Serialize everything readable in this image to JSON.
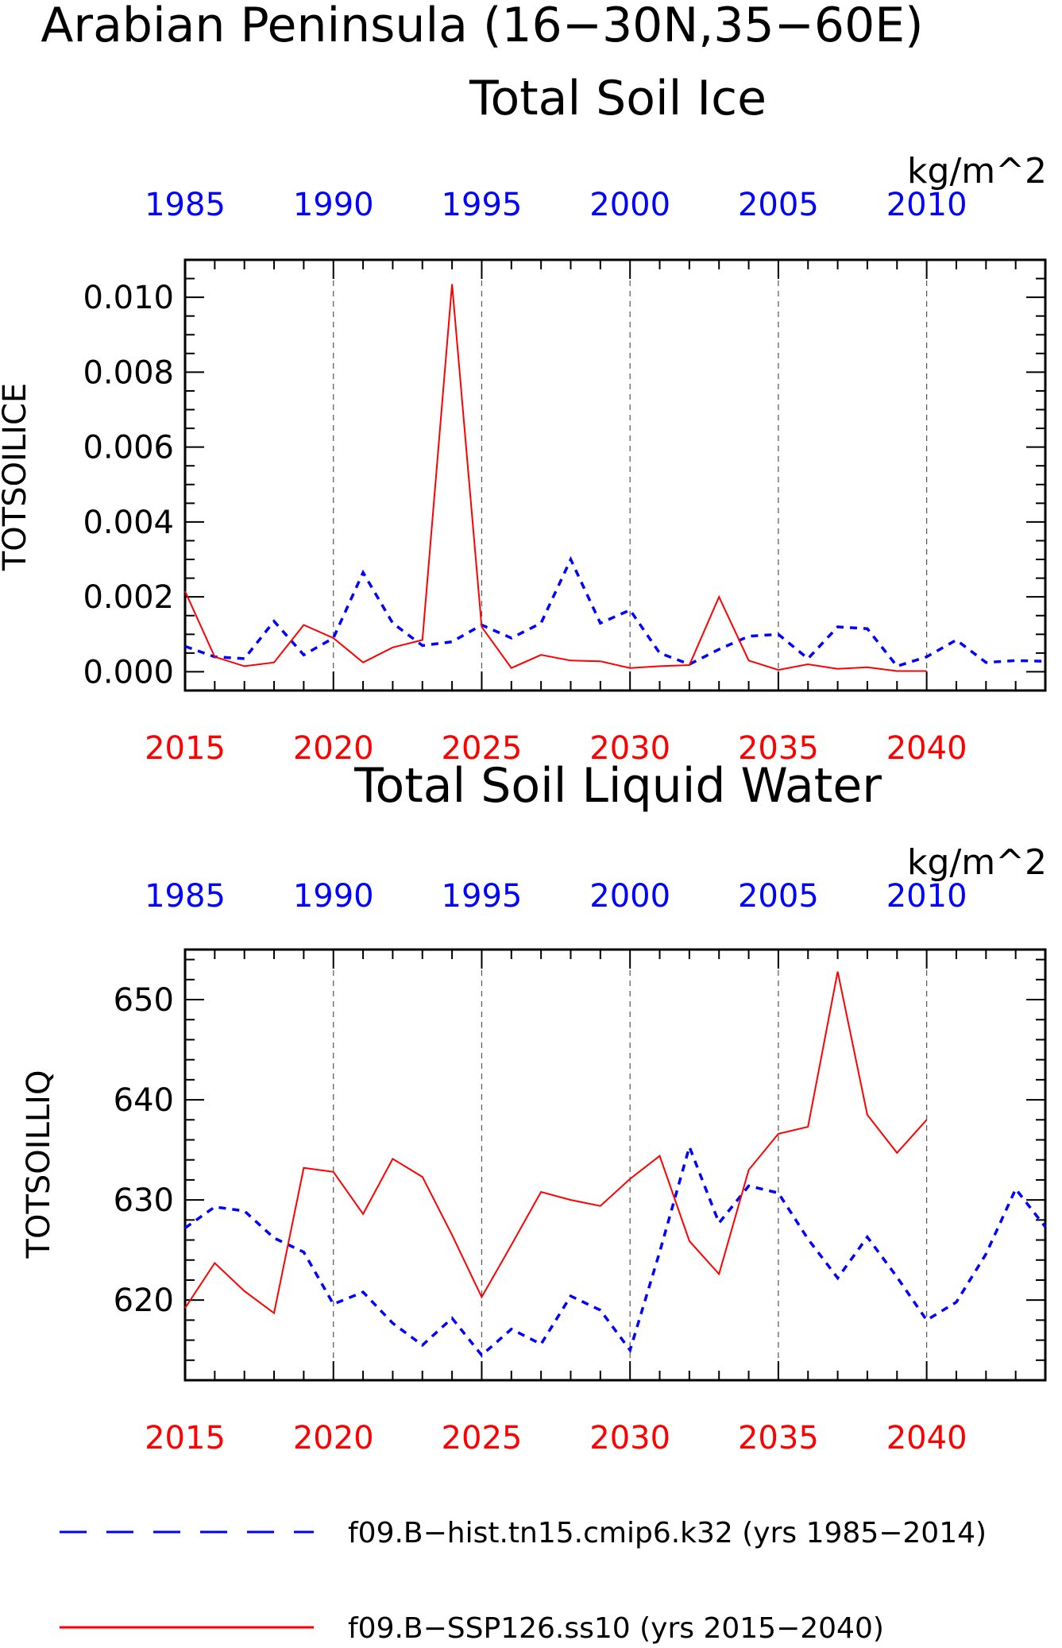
{
  "figure_title": "Arabian Peninsula (16−30N,35−60E)",
  "legend": [
    {
      "label": "f09.B−hist.tn15.cmip6.k32 (yrs 1985−2014)",
      "color": "#0000ff",
      "style": "dashed"
    },
    {
      "label": "f09.B−SSP126.ss10 (yrs 2015−2040)",
      "color": "#ff0000",
      "style": "solid"
    }
  ],
  "colors": {
    "hist": "#0000ff",
    "ssp": "#ff0000",
    "axis": "#000000",
    "grid": "#555555"
  },
  "chart_data": [
    {
      "type": "line",
      "title": "Total Soil Ice",
      "units": "kg/m^2",
      "ylabel": "TOTSOILICE",
      "ylim": [
        -0.0005,
        0.011
      ],
      "yticks": [
        {
          "v": 0.0,
          "label": "0.000"
        },
        {
          "v": 0.002,
          "label": "0.002"
        },
        {
          "v": 0.004,
          "label": "0.004"
        },
        {
          "v": 0.006,
          "label": "0.006"
        },
        {
          "v": 0.008,
          "label": "0.008"
        },
        {
          "v": 0.01,
          "label": "0.010"
        }
      ],
      "yminor": 0.0005,
      "top_xlim": [
        1985,
        2014
      ],
      "top_xticks": [
        "1985",
        "1990",
        "1995",
        "2000",
        "2005",
        "2010"
      ],
      "bottom_xlim": [
        2015,
        2044
      ],
      "bottom_xticks": [
        "2015",
        "2020",
        "2025",
        "2030",
        "2035",
        "2040"
      ],
      "grid": "vertical dashed at major ticks",
      "series": [
        {
          "name": "f09.B−hist.tn15.cmip6.k32 (yrs 1985−2014)",
          "axis": "top",
          "x": [
            1985,
            1986,
            1987,
            1988,
            1989,
            1990,
            1991,
            1992,
            1993,
            1994,
            1995,
            1996,
            1997,
            1998,
            1999,
            2000,
            2001,
            2002,
            2003,
            2004,
            2005,
            2006,
            2007,
            2008,
            2009,
            2010,
            2011,
            2012,
            2013,
            2014
          ],
          "values": [
            0.00068,
            0.0004,
            0.00035,
            0.00135,
            0.00045,
            0.0009,
            0.00265,
            0.0013,
            0.0007,
            0.0008,
            0.00125,
            0.0009,
            0.0013,
            0.003,
            0.0013,
            0.00165,
            0.0005,
            0.0002,
            0.0006,
            0.00095,
            0.001,
            0.00035,
            0.0012,
            0.00115,
            0.00015,
            0.0004,
            0.00085,
            0.00025,
            0.0003,
            0.00028
          ]
        },
        {
          "name": "f09.B−SSP126.ss10 (yrs 2015−2040)",
          "axis": "bottom",
          "x": [
            2015,
            2016,
            2017,
            2018,
            2019,
            2020,
            2021,
            2022,
            2023,
            2024,
            2025,
            2026,
            2027,
            2028,
            2029,
            2030,
            2031,
            2032,
            2033,
            2034,
            2035,
            2036,
            2037,
            2038,
            2039,
            2040
          ],
          "values": [
            0.00215,
            0.0004,
            0.00015,
            0.00025,
            0.00125,
            0.0009,
            0.00025,
            0.00065,
            0.00085,
            0.01035,
            0.0012,
            0.0001,
            0.00045,
            0.0003,
            0.00028,
            0.0001,
            0.00015,
            0.00018,
            0.002,
            0.0003,
            5e-05,
            0.0002,
            8e-05,
            0.00012,
            2e-05,
            2e-05
          ]
        }
      ]
    },
    {
      "type": "line",
      "title": "Total Soil Liquid Water",
      "units": "kg/m^2",
      "ylabel": "TOTSOILLIQ",
      "ylim": [
        612,
        655
      ],
      "yticks": [
        {
          "v": 620,
          "label": "620"
        },
        {
          "v": 630,
          "label": "630"
        },
        {
          "v": 640,
          "label": "640"
        },
        {
          "v": 650,
          "label": "650"
        }
      ],
      "yminor": 2,
      "top_xlim": [
        1985,
        2014
      ],
      "top_xticks": [
        "1985",
        "1990",
        "1995",
        "2000",
        "2005",
        "2010"
      ],
      "bottom_xlim": [
        2015,
        2044
      ],
      "bottom_xticks": [
        "2015",
        "2020",
        "2025",
        "2030",
        "2035",
        "2040"
      ],
      "grid": "vertical dashed at major ticks",
      "series": [
        {
          "name": "f09.B−hist.tn15.cmip6.k32 (yrs 1985−2014)",
          "axis": "top",
          "x": [
            1985,
            1986,
            1987,
            1988,
            1989,
            1990,
            1991,
            1992,
            1993,
            1994,
            1995,
            1996,
            1997,
            1998,
            1999,
            2000,
            2001,
            2002,
            2003,
            2004,
            2005,
            2006,
            2007,
            2008,
            2009,
            2010,
            2011,
            2012,
            2013,
            2014
          ],
          "values": [
            627.2,
            629.3,
            628.9,
            626.2,
            624.8,
            619.6,
            620.8,
            617.7,
            615.5,
            618.2,
            614.5,
            617.1,
            615.6,
            620.4,
            619.0,
            615.0,
            624.8,
            635.3,
            627.7,
            631.4,
            630.7,
            626.1,
            622.2,
            626.3,
            622.3,
            618.0,
            619.8,
            624.6,
            631.1,
            627.3
          ]
        },
        {
          "name": "f09.B−SSP126.ss10 (yrs 2015−2040)",
          "axis": "bottom",
          "x": [
            2015,
            2016,
            2017,
            2018,
            2019,
            2020,
            2021,
            2022,
            2023,
            2024,
            2025,
            2026,
            2027,
            2028,
            2029,
            2030,
            2031,
            2032,
            2033,
            2034,
            2035,
            2036,
            2037,
            2038,
            2039,
            2040
          ],
          "values": [
            619.2,
            623.7,
            620.9,
            618.7,
            633.2,
            632.8,
            628.6,
            634.1,
            632.3,
            626.5,
            620.3,
            625.5,
            630.8,
            630.0,
            629.4,
            632.1,
            634.4,
            625.9,
            622.6,
            633.0,
            636.6,
            637.3,
            652.8,
            638.5,
            634.7,
            638.0
          ]
        }
      ]
    }
  ]
}
